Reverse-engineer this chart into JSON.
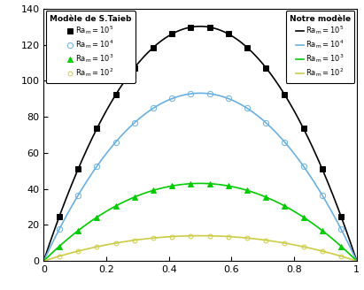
{
  "xlim": [
    0,
    1
  ],
  "ylim": [
    0,
    140
  ],
  "yticks": [
    0,
    20,
    40,
    60,
    80,
    100,
    120,
    140
  ],
  "xticks": [
    0,
    0.2,
    0.4,
    0.6,
    0.8,
    1.0
  ],
  "curves": [
    {
      "amplitude": 130,
      "peak": 0.52,
      "line_color": "#000000",
      "marker": "s",
      "mfc": "#000000",
      "mec": "#000000",
      "ms": 4.5,
      "lw": 1.2,
      "ra_label": "Ra$_m$$=10^5$",
      "ra_label2": "Ra$_m$$=10^5$"
    },
    {
      "amplitude": 93,
      "peak": 0.52,
      "line_color": "#6ab0e0",
      "marker": "o",
      "mfc": "none",
      "mec": "#6ab0e0",
      "ms": 4.5,
      "lw": 1.2,
      "ra_label": "Ra$_m$$=10^4$",
      "ra_label2": "Ra$_m$$=10^4$"
    },
    {
      "amplitude": 43,
      "peak": 0.52,
      "line_color": "#00cc00",
      "marker": "^",
      "mfc": "#00cc00",
      "mec": "#00cc00",
      "ms": 4.5,
      "lw": 1.2,
      "ra_label": "Ra$_m$$=10^3$",
      "ra_label2": "Ra$_m$$=10^3$"
    },
    {
      "amplitude": 14,
      "peak": 0.52,
      "line_color": "#cccc44",
      "marker": "o",
      "mfc": "none",
      "mec": "#cccc44",
      "ms": 3.5,
      "lw": 1.2,
      "ra_label": "Ra$_m$$=10^2$",
      "ra_label2": "Ra$_m$$=10^2$"
    }
  ],
  "legend1_title": "Modèle de S.Taieb",
  "legend2_title": "Notre modèle",
  "n_smooth": 400,
  "n_markers": 16
}
